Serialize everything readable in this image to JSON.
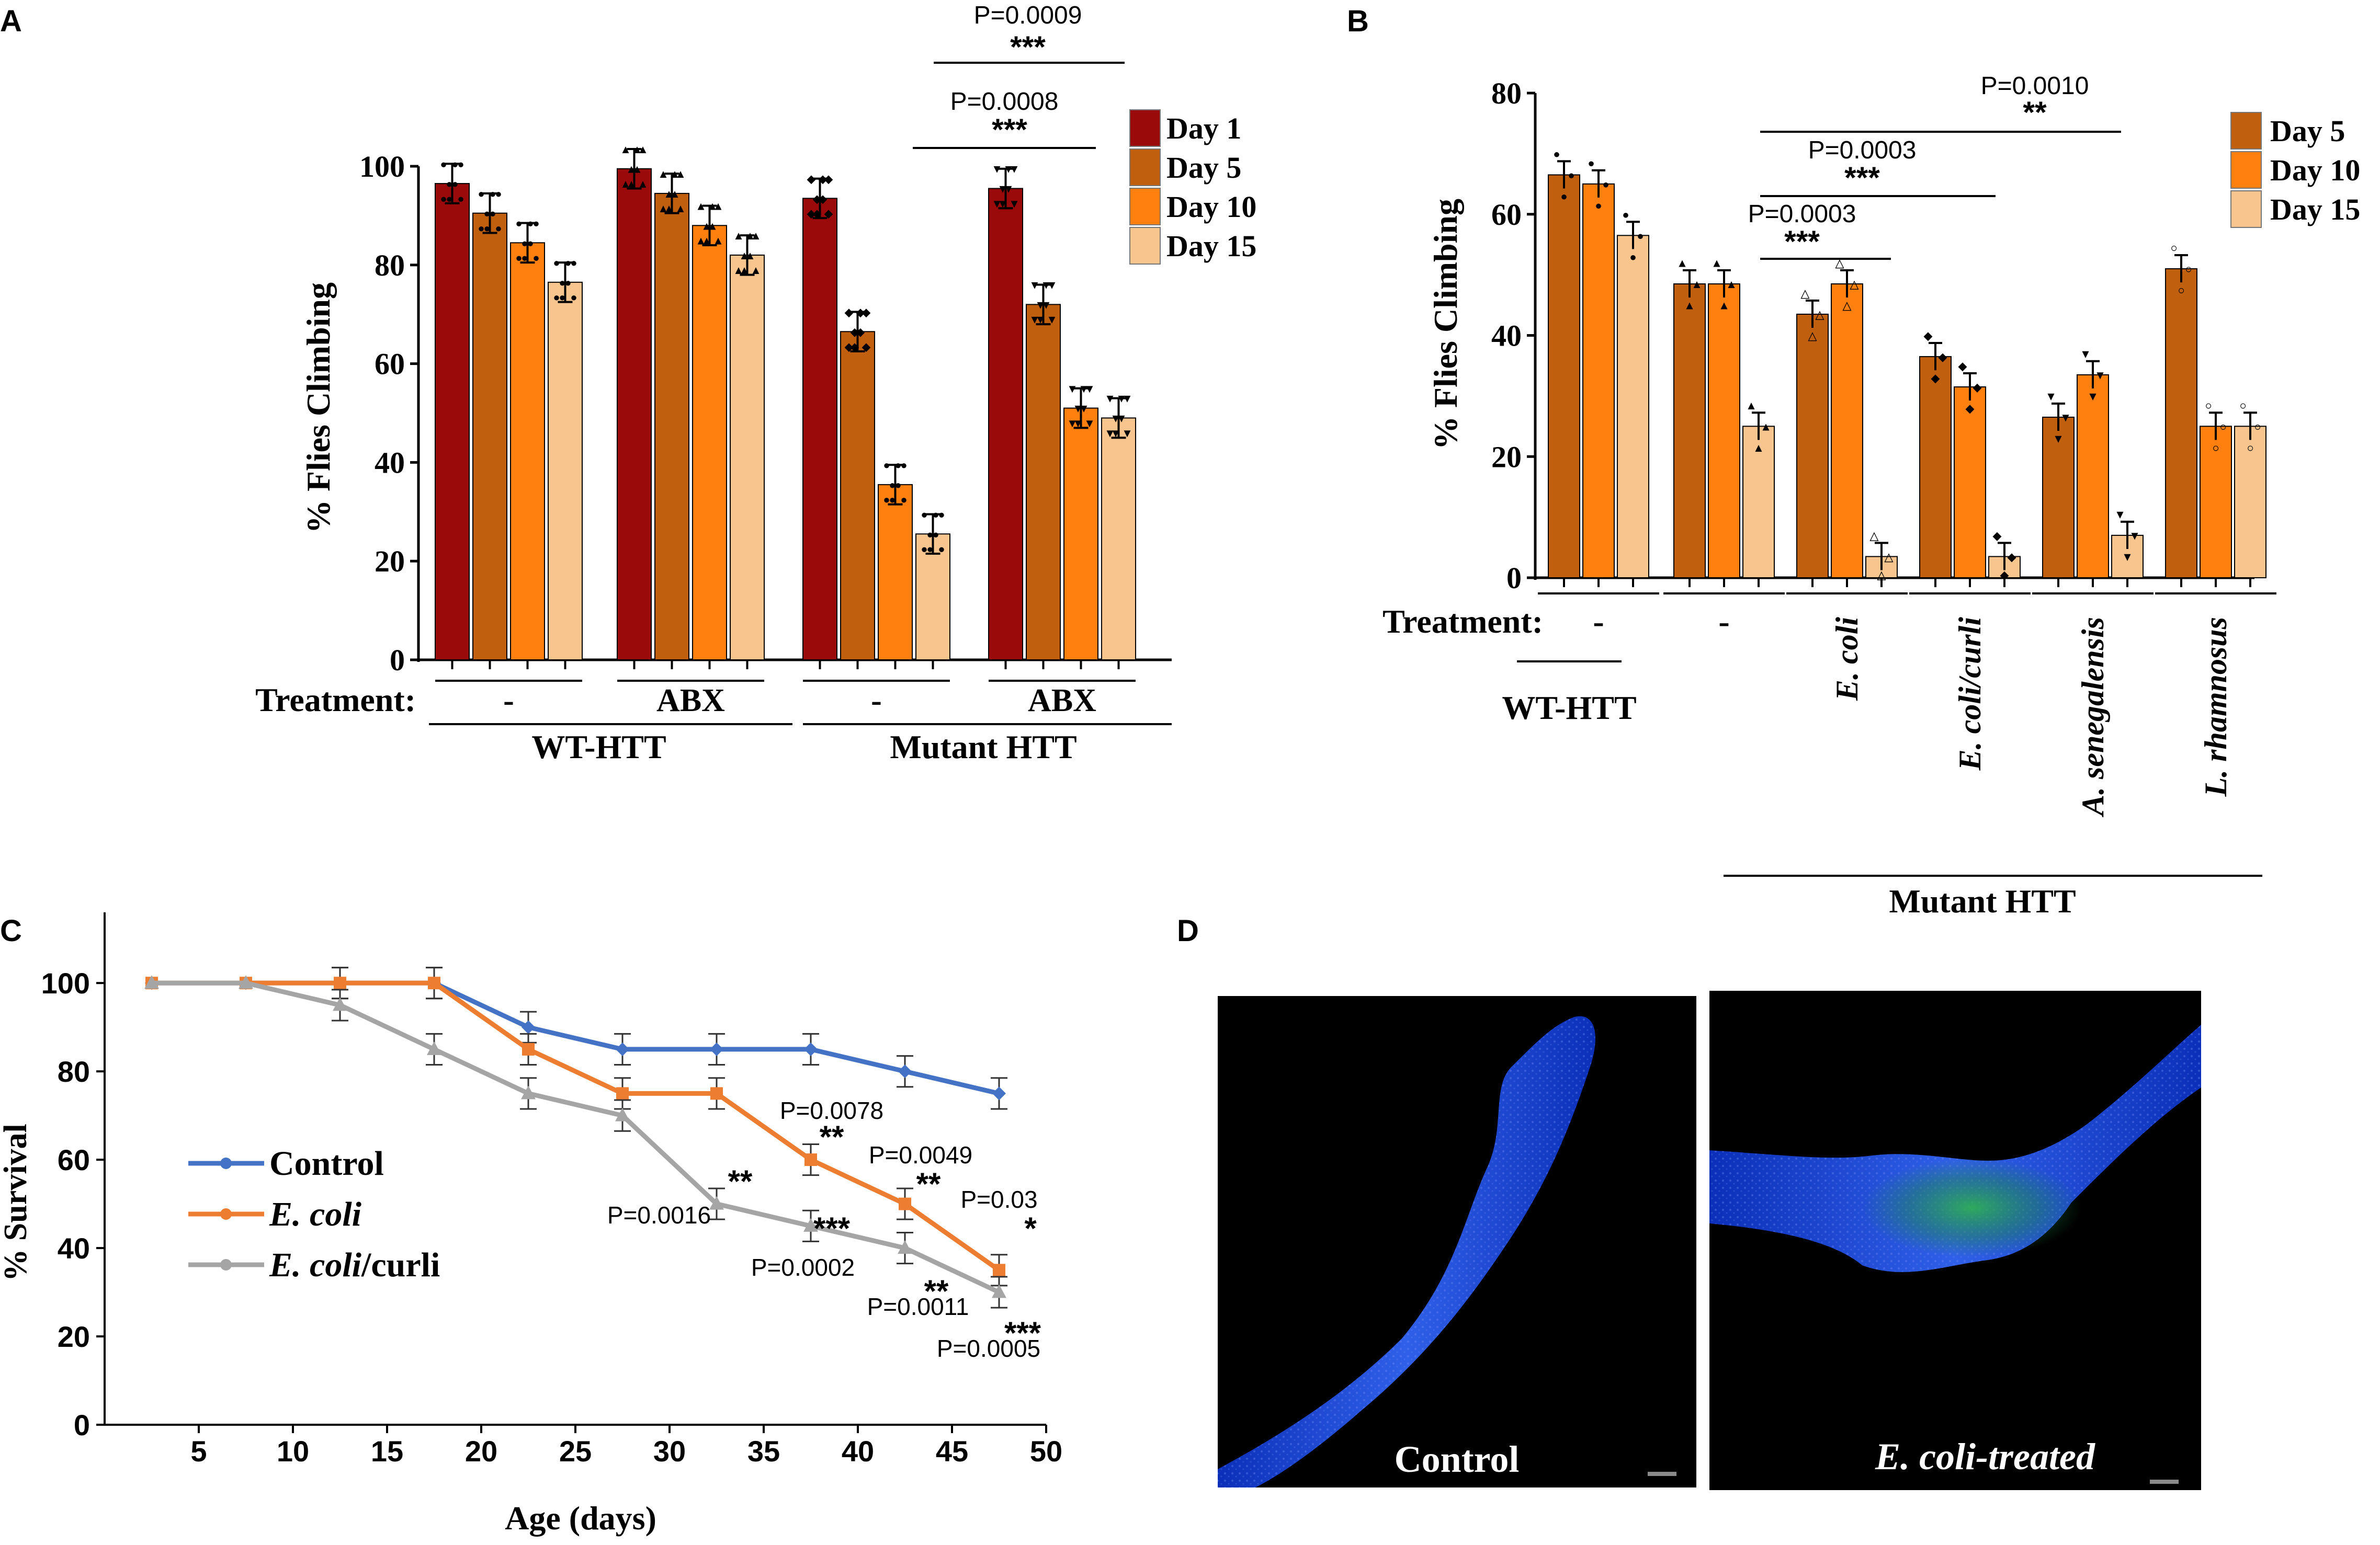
{
  "colors": {
    "day1": "#9b0a0a",
    "day5": "#c0600e",
    "day10": "#ff7f0f",
    "day15": "#f8c58e",
    "control_line": "#4472c4",
    "ecoli_line": "#ed7d31",
    "curli_line": "#a5a5a5"
  },
  "chart_data": [
    {
      "panel": "A",
      "type": "bar",
      "ylabel": "% Flies  Climbing",
      "ylim": [
        0,
        100
      ],
      "yticks": [
        "0",
        "20",
        "40",
        "60",
        "80",
        "100"
      ],
      "legend": [
        "Day 1",
        "Day 5",
        "Day 10",
        "Day 15"
      ],
      "treatment_label": "Treatment:",
      "series_keys": [
        "day1",
        "day5",
        "day10",
        "day15"
      ],
      "groups": [
        {
          "treatment": "-",
          "genotype": "WT-HTT",
          "values": [
            96.5,
            90.5,
            84.5,
            76.5
          ]
        },
        {
          "treatment": "ABX",
          "genotype": "WT-HTT",
          "values": [
            99.5,
            94.5,
            88,
            82
          ]
        },
        {
          "treatment": "-",
          "genotype": "Mutant HTT",
          "values": [
            93.5,
            66.5,
            35.5,
            25.5
          ]
        },
        {
          "treatment": "ABX",
          "genotype": "Mutant HTT",
          "values": [
            95.5,
            72,
            51,
            49
          ]
        }
      ],
      "genotypes": [
        "WT-HTT",
        "Mutant HTT"
      ],
      "annotations": [
        {
          "p": "P=0.0009",
          "stars": "***"
        },
        {
          "p": "P=0.0008",
          "stars": "***"
        }
      ]
    },
    {
      "panel": "B",
      "type": "bar",
      "ylabel": "% Flies  Climbing",
      "ylim": [
        0,
        80
      ],
      "yticks": [
        "0",
        "20",
        "40",
        "60",
        "80"
      ],
      "legend": [
        "Day 5",
        "Day 10",
        "Day 15"
      ],
      "treatment_label": "Treatment:",
      "series_keys": [
        "day5",
        "day10",
        "day15"
      ],
      "groups": [
        {
          "treatment": "-",
          "values": [
            66.5,
            65,
            56.5
          ]
        },
        {
          "treatment": "-",
          "values": [
            48.5,
            48.5,
            25
          ]
        },
        {
          "treatment": "E. coli",
          "values": [
            43.5,
            48.5,
            3.5
          ]
        },
        {
          "treatment": "E. coli/curli",
          "values": [
            36.5,
            31.5,
            3.5
          ]
        },
        {
          "treatment": "A. senegalensis",
          "values": [
            26.5,
            33.5,
            7
          ]
        },
        {
          "treatment": "L. rhamnosus",
          "values": [
            51,
            25,
            25
          ]
        }
      ],
      "genotype_wt": "WT-HTT",
      "genotype_mut": "Mutant HTT",
      "annotations": [
        {
          "p": "P=0.0010",
          "stars": "**"
        },
        {
          "p": "P=0.0003",
          "stars": "***"
        },
        {
          "p": "P=0.0003",
          "stars": "***"
        }
      ]
    },
    {
      "panel": "C",
      "type": "line",
      "xlabel": "Age (days)",
      "ylabel": "% Survival",
      "xlim": [
        0,
        50
      ],
      "ylim": [
        0,
        100
      ],
      "xticks": [
        "5",
        "10",
        "15",
        "20",
        "25",
        "30",
        "35",
        "40",
        "45",
        "50"
      ],
      "yticks": [
        "0",
        "20",
        "40",
        "60",
        "80",
        "100"
      ],
      "x": [
        2.5,
        7.5,
        12.5,
        17.5,
        22.5,
        27.5,
        32.5,
        37.5,
        42.5,
        47.5
      ],
      "series": [
        {
          "name": "Control",
          "key": "control_line",
          "values": [
            100,
            100,
            100,
            100,
            90,
            85,
            85,
            85,
            80,
            75
          ]
        },
        {
          "name": "E. coli",
          "key": "ecoli_line",
          "values": [
            100,
            100,
            100,
            100,
            85,
            75,
            75,
            60,
            50,
            35
          ]
        },
        {
          "name": "E. coli/curli",
          "key": "curli_line",
          "values": [
            100,
            100,
            95,
            85,
            75,
            70,
            50,
            45,
            40,
            30
          ]
        }
      ],
      "legend_suffix": "/curli",
      "annotations": [
        {
          "p": "P=0.0078",
          "stars": "**"
        },
        {
          "p": "P=0.0049",
          "stars": "**"
        },
        {
          "p": "P=0.03",
          "stars": "*"
        },
        {
          "p": "P=0.0016",
          "stars": "**"
        },
        {
          "p": "P=0.0002",
          "stars": "***"
        },
        {
          "p": "P=0.0011",
          "stars": "**"
        },
        {
          "p": "P=0.0005",
          "stars": "***"
        }
      ]
    }
  ],
  "panels": {
    "A": "A",
    "B": "B",
    "C": "C",
    "D": "D"
  },
  "images": {
    "control_caption": "Control",
    "treated_caption": "E. coli-treated"
  }
}
